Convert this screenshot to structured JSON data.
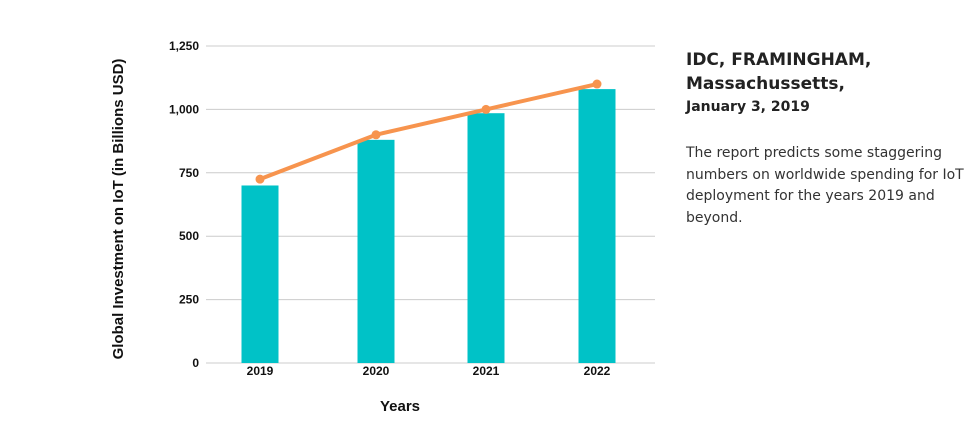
{
  "chart_data": {
    "type": "bar",
    "categories": [
      "2019",
      "2020",
      "2021",
      "2022"
    ],
    "series": [
      {
        "type": "bar",
        "values": [
          700,
          880,
          985,
          1080
        ],
        "color": "#00c2c7"
      },
      {
        "type": "line",
        "values": [
          725,
          900,
          1000,
          1100
        ],
        "color": "#f7944e"
      }
    ],
    "ylim": [
      0,
      1250
    ],
    "yticks": [
      0,
      250,
      500,
      750,
      1000,
      1250
    ],
    "ytick_labels": [
      "0",
      "250",
      "500",
      "750",
      "1,000",
      "1,250"
    ],
    "xlabel": "Years",
    "ylabel": "Global Investment on IoT (in Billions USD)",
    "grid": "horizontal",
    "grid_color": "#cccccc"
  },
  "sidebar": {
    "title_line1": "IDC, FRAMINGHAM,",
    "title_line2": "Massachussetts,",
    "date": "January 3, 2019",
    "body": "The report predicts some staggering numbers on worldwide spending for IoT deployment for the years 2019 and beyond."
  }
}
